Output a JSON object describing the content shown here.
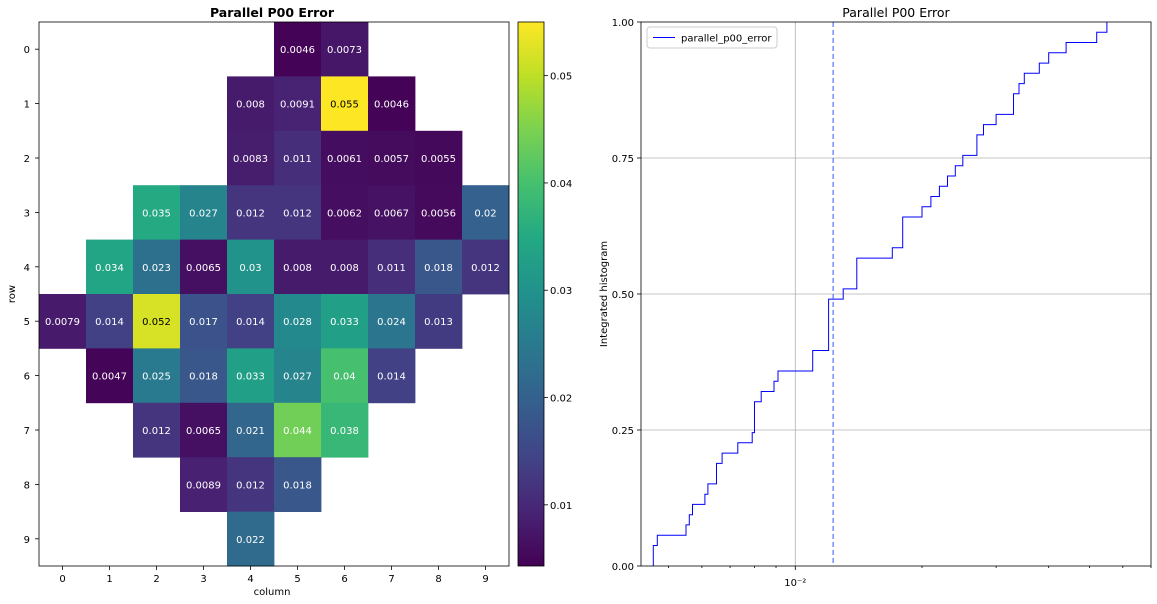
{
  "chart_data": [
    {
      "type": "heatmap",
      "title": "Parallel P00 Error",
      "xlabel": "column",
      "ylabel": "row",
      "x_ticks": [
        "0",
        "1",
        "2",
        "3",
        "4",
        "5",
        "6",
        "7",
        "8",
        "9"
      ],
      "y_ticks": [
        "0",
        "1",
        "2",
        "3",
        "4",
        "5",
        "6",
        "7",
        "8",
        "9"
      ],
      "colormap": "viridis",
      "color_range": [
        0.0043,
        0.055
      ],
      "colorbar_ticks": [
        0.01,
        0.02,
        0.03,
        0.04,
        0.05
      ],
      "colorbar_tick_labels": [
        "0.01",
        "0.02",
        "0.03",
        "0.04",
        "0.05"
      ],
      "cells": [
        {
          "row": 0,
          "col": 5,
          "value": 0.0046,
          "label": "0.0046"
        },
        {
          "row": 0,
          "col": 6,
          "value": 0.0073,
          "label": "0.0073"
        },
        {
          "row": 1,
          "col": 4,
          "value": 0.008,
          "label": "0.008"
        },
        {
          "row": 1,
          "col": 5,
          "value": 0.0091,
          "label": "0.0091"
        },
        {
          "row": 1,
          "col": 6,
          "value": 0.055,
          "label": "0.055"
        },
        {
          "row": 1,
          "col": 7,
          "value": 0.0046,
          "label": "0.0046"
        },
        {
          "row": 2,
          "col": 4,
          "value": 0.0083,
          "label": "0.0083"
        },
        {
          "row": 2,
          "col": 5,
          "value": 0.011,
          "label": "0.011"
        },
        {
          "row": 2,
          "col": 6,
          "value": 0.0061,
          "label": "0.0061"
        },
        {
          "row": 2,
          "col": 7,
          "value": 0.0057,
          "label": "0.0057"
        },
        {
          "row": 2,
          "col": 8,
          "value": 0.0055,
          "label": "0.0055"
        },
        {
          "row": 3,
          "col": 2,
          "value": 0.035,
          "label": "0.035"
        },
        {
          "row": 3,
          "col": 3,
          "value": 0.027,
          "label": "0.027"
        },
        {
          "row": 3,
          "col": 4,
          "value": 0.012,
          "label": "0.012"
        },
        {
          "row": 3,
          "col": 5,
          "value": 0.012,
          "label": "0.012"
        },
        {
          "row": 3,
          "col": 6,
          "value": 0.0062,
          "label": "0.0062"
        },
        {
          "row": 3,
          "col": 7,
          "value": 0.0067,
          "label": "0.0067"
        },
        {
          "row": 3,
          "col": 8,
          "value": 0.0056,
          "label": "0.0056"
        },
        {
          "row": 3,
          "col": 9,
          "value": 0.02,
          "label": "0.02"
        },
        {
          "row": 4,
          "col": 1,
          "value": 0.034,
          "label": "0.034"
        },
        {
          "row": 4,
          "col": 2,
          "value": 0.023,
          "label": "0.023"
        },
        {
          "row": 4,
          "col": 3,
          "value": 0.0065,
          "label": "0.0065"
        },
        {
          "row": 4,
          "col": 4,
          "value": 0.03,
          "label": "0.03"
        },
        {
          "row": 4,
          "col": 5,
          "value": 0.008,
          "label": "0.008"
        },
        {
          "row": 4,
          "col": 6,
          "value": 0.008,
          "label": "0.008"
        },
        {
          "row": 4,
          "col": 7,
          "value": 0.011,
          "label": "0.011"
        },
        {
          "row": 4,
          "col": 8,
          "value": 0.018,
          "label": "0.018"
        },
        {
          "row": 4,
          "col": 9,
          "value": 0.012,
          "label": "0.012"
        },
        {
          "row": 5,
          "col": 0,
          "value": 0.0079,
          "label": "0.0079"
        },
        {
          "row": 5,
          "col": 1,
          "value": 0.014,
          "label": "0.014"
        },
        {
          "row": 5,
          "col": 2,
          "value": 0.052,
          "label": "0.052"
        },
        {
          "row": 5,
          "col": 3,
          "value": 0.017,
          "label": "0.017"
        },
        {
          "row": 5,
          "col": 4,
          "value": 0.014,
          "label": "0.014"
        },
        {
          "row": 5,
          "col": 5,
          "value": 0.028,
          "label": "0.028"
        },
        {
          "row": 5,
          "col": 6,
          "value": 0.033,
          "label": "0.033"
        },
        {
          "row": 5,
          "col": 7,
          "value": 0.024,
          "label": "0.024"
        },
        {
          "row": 5,
          "col": 8,
          "value": 0.013,
          "label": "0.013"
        },
        {
          "row": 6,
          "col": 1,
          "value": 0.0047,
          "label": "0.0047"
        },
        {
          "row": 6,
          "col": 2,
          "value": 0.025,
          "label": "0.025"
        },
        {
          "row": 6,
          "col": 3,
          "value": 0.018,
          "label": "0.018"
        },
        {
          "row": 6,
          "col": 4,
          "value": 0.033,
          "label": "0.033"
        },
        {
          "row": 6,
          "col": 5,
          "value": 0.027,
          "label": "0.027"
        },
        {
          "row": 6,
          "col": 6,
          "value": 0.04,
          "label": "0.04"
        },
        {
          "row": 6,
          "col": 7,
          "value": 0.014,
          "label": "0.014"
        },
        {
          "row": 7,
          "col": 2,
          "value": 0.012,
          "label": "0.012"
        },
        {
          "row": 7,
          "col": 3,
          "value": 0.0065,
          "label": "0.0065"
        },
        {
          "row": 7,
          "col": 4,
          "value": 0.021,
          "label": "0.021"
        },
        {
          "row": 7,
          "col": 5,
          "value": 0.044,
          "label": "0.044"
        },
        {
          "row": 7,
          "col": 6,
          "value": 0.038,
          "label": "0.038"
        },
        {
          "row": 8,
          "col": 3,
          "value": 0.0089,
          "label": "0.0089"
        },
        {
          "row": 8,
          "col": 4,
          "value": 0.012,
          "label": "0.012"
        },
        {
          "row": 8,
          "col": 5,
          "value": 0.018,
          "label": "0.018"
        },
        {
          "row": 9,
          "col": 4,
          "value": 0.022,
          "label": "0.022"
        }
      ]
    },
    {
      "type": "line",
      "title": "Parallel P00 Error",
      "xlabel": "",
      "ylabel": "Integrated histogram",
      "x_scale": "log",
      "x_tick_labels": [
        "10⁻²"
      ],
      "y_ticks": [
        0.0,
        0.25,
        0.5,
        0.75,
        1.0
      ],
      "y_tick_labels": [
        "0.00",
        "0.25",
        "0.50",
        "0.75",
        "1.00"
      ],
      "xlim": [
        0.0043,
        0.07
      ],
      "ylim": [
        0,
        1
      ],
      "grid": true,
      "legend": "top-left",
      "series": [
        {
          "name": "parallel_p00_error",
          "color": "#0000ff",
          "style": "step"
        }
      ],
      "vline": {
        "x": 0.0123,
        "color": "#3355ff",
        "style": "dashed"
      }
    }
  ]
}
